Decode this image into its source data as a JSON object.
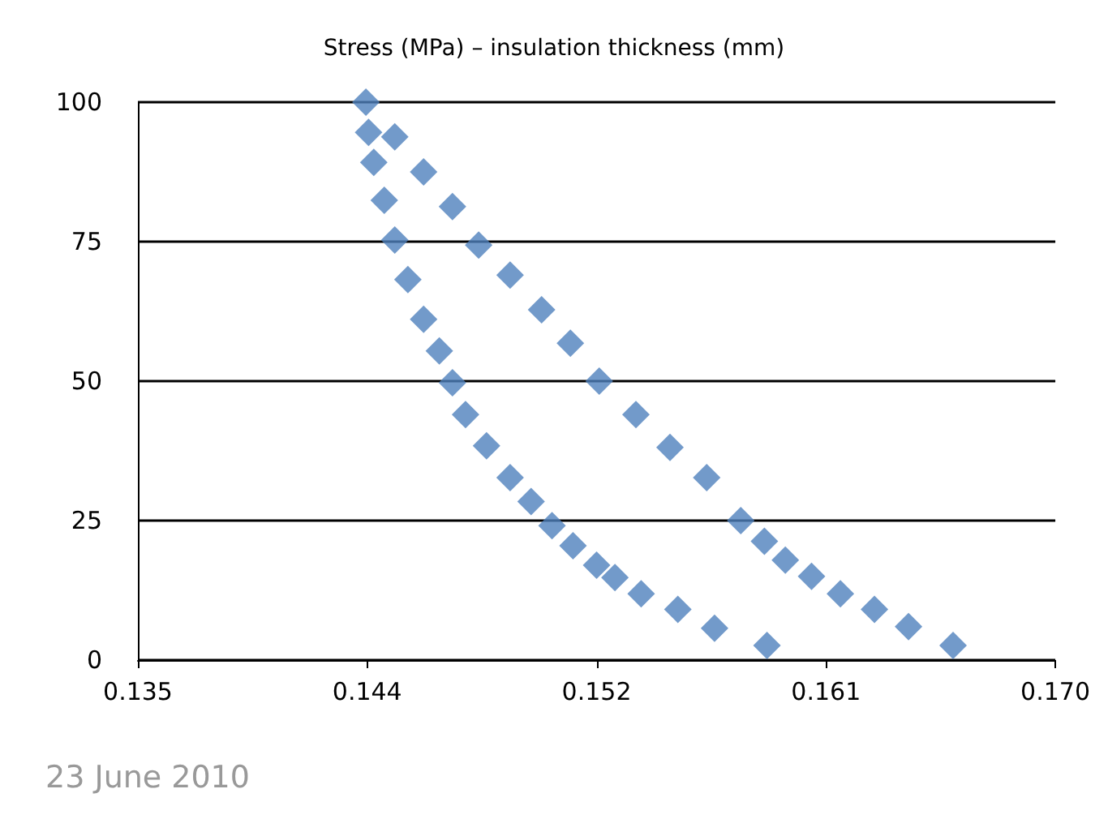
{
  "chart_data": {
    "type": "scatter",
    "title": "Stress (MPa) – insulation thickness (mm)",
    "annotations": [
      "23 June 2010"
    ],
    "series": [
      {
        "color": "#4f81bd",
        "x": [
          0.1437,
          0.1438,
          0.144,
          0.1444,
          0.1448,
          0.1453,
          0.1459,
          0.1465,
          0.147,
          0.1475,
          0.1483,
          0.1492,
          0.15,
          0.1508,
          0.1516,
          0.1525,
          0.1532,
          0.1542,
          0.1556,
          0.157,
          0.159,
          0.1661,
          0.1644,
          0.1631,
          0.1618,
          0.1607,
          0.1597,
          0.1589,
          0.158,
          0.1567,
          0.1553,
          0.154,
          0.1526,
          0.1515,
          0.1504,
          0.1492,
          0.148,
          0.147,
          0.1459,
          0.1448
        ],
        "values": [
          100,
          94.6,
          89.2,
          82.4,
          75.3,
          68.2,
          61.1,
          55.4,
          49.7,
          44.0,
          38.4,
          32.7,
          28.4,
          24.1,
          20.5,
          17.0,
          14.8,
          11.9,
          9.1,
          5.7,
          2.6,
          2.6,
          6.0,
          9.1,
          11.9,
          15.0,
          17.9,
          21.3,
          25.0,
          32.7,
          38.1,
          44.0,
          50.0,
          56.8,
          62.8,
          69.0,
          74.4,
          81.3,
          87.5,
          93.8
        ]
      }
    ],
    "marker": "diamond",
    "xlim": [
      0.135,
      0.17
    ],
    "xticks": [
      0.135,
      {
        "value": 0.14375,
        "label": "0.144"
      },
      {
        "value": 0.1525,
        "label": "0.152"
      },
      {
        "value": 0.16125,
        "label": "0.161"
      },
      {
        "value": 0.17,
        "label": "0.170"
      }
    ],
    "ylim": [
      0,
      100
    ],
    "yticks": [
      0,
      25,
      50,
      75,
      100
    ],
    "grid": "y"
  }
}
